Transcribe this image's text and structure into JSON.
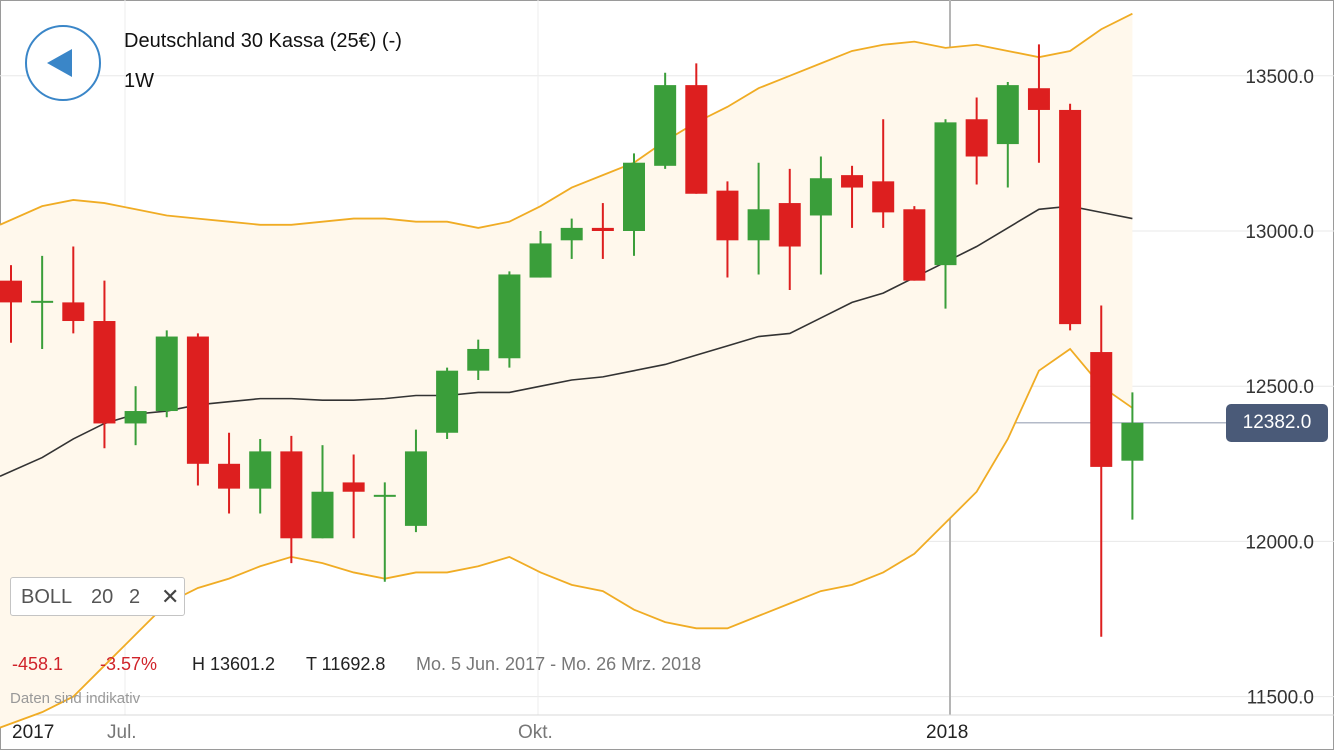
{
  "header": {
    "title": "Deutschland 30 Kassa (25€) (-)",
    "interval": "1W",
    "back_icon": "back-arrow-icon"
  },
  "indicator": {
    "name": "BOLL",
    "period": "20",
    "stddev": "2",
    "close_icon": "close-icon"
  },
  "stats": {
    "change_abs": "-458.1",
    "change_pct": "-3.57%",
    "high": "H 13601.2",
    "low": "T 11692.8",
    "range": "Mo. 5 Jun. 2017 - Mo. 26 Mrz. 2018"
  },
  "disclaimer": "Daten sind indikativ",
  "current_price": "12382.0",
  "colors": {
    "up": "#3a9e3a",
    "down": "#dd1f1f",
    "band": "#f0ac24",
    "band_fill": "#fff8ec",
    "middle": "#333333",
    "badge": "#4a5a78",
    "back_button": "#3a86c8"
  },
  "chart_data": {
    "type": "candlestick",
    "title": "Deutschland 30 Kassa (25€) (-)",
    "interval": "1W",
    "ylim": [
      11450,
      13850
    ],
    "yticks": [
      11500,
      12000,
      12500,
      13000,
      13500
    ],
    "ytick_labels": [
      "11500.0",
      "12000.0",
      "12500.0",
      "13000.0",
      "13500.0"
    ],
    "xtick_labels": [
      "2017",
      "Jul.",
      "Okt.",
      "2018"
    ],
    "grid": true,
    "current_price": 12382.0,
    "candles": [
      {
        "o": 12840,
        "h": 12890,
        "l": 12640,
        "c": 12770
      },
      {
        "o": 12770,
        "h": 12920,
        "l": 12620,
        "c": 12775
      },
      {
        "o": 12770,
        "h": 12950,
        "l": 12670,
        "c": 12710
      },
      {
        "o": 12710,
        "h": 12840,
        "l": 12300,
        "c": 12380
      },
      {
        "o": 12380,
        "h": 12500,
        "l": 12310,
        "c": 12420
      },
      {
        "o": 12420,
        "h": 12680,
        "l": 12400,
        "c": 12660
      },
      {
        "o": 12660,
        "h": 12670,
        "l": 12180,
        "c": 12250
      },
      {
        "o": 12250,
        "h": 12350,
        "l": 12090,
        "c": 12170
      },
      {
        "o": 12170,
        "h": 12330,
        "l": 12090,
        "c": 12290
      },
      {
        "o": 12290,
        "h": 12340,
        "l": 11930,
        "c": 12010
      },
      {
        "o": 12010,
        "h": 12310,
        "l": 12010,
        "c": 12160
      },
      {
        "o": 12190,
        "h": 12280,
        "l": 12010,
        "c": 12160
      },
      {
        "o": 12150,
        "h": 12190,
        "l": 11870,
        "c": 12150
      },
      {
        "o": 12050,
        "h": 12360,
        "l": 12030,
        "c": 12290
      },
      {
        "o": 12350,
        "h": 12560,
        "l": 12330,
        "c": 12550
      },
      {
        "o": 12550,
        "h": 12650,
        "l": 12520,
        "c": 12620
      },
      {
        "o": 12590,
        "h": 12870,
        "l": 12560,
        "c": 12860
      },
      {
        "o": 12850,
        "h": 13000,
        "l": 12850,
        "c": 12960
      },
      {
        "o": 12970,
        "h": 13040,
        "l": 12910,
        "c": 13010
      },
      {
        "o": 13010,
        "h": 13090,
        "l": 12910,
        "c": 13000
      },
      {
        "o": 13000,
        "h": 13250,
        "l": 12920,
        "c": 13220
      },
      {
        "o": 13210,
        "h": 13510,
        "l": 13200,
        "c": 13470
      },
      {
        "o": 13470,
        "h": 13540,
        "l": 13120,
        "c": 13120
      },
      {
        "o": 13130,
        "h": 13160,
        "l": 12850,
        "c": 12970
      },
      {
        "o": 12970,
        "h": 13220,
        "l": 12860,
        "c": 13070
      },
      {
        "o": 13090,
        "h": 13200,
        "l": 12810,
        "c": 12950
      },
      {
        "o": 13050,
        "h": 13240,
        "l": 12860,
        "c": 13170
      },
      {
        "o": 13180,
        "h": 13210,
        "l": 13010,
        "c": 13140
      },
      {
        "o": 13160,
        "h": 13360,
        "l": 13010,
        "c": 13060
      },
      {
        "o": 13070,
        "h": 13080,
        "l": 12840,
        "c": 12840
      },
      {
        "o": 12890,
        "h": 13360,
        "l": 12750,
        "c": 13350
      },
      {
        "o": 13360,
        "h": 13430,
        "l": 13150,
        "c": 13240
      },
      {
        "o": 13280,
        "h": 13480,
        "l": 13140,
        "c": 13470
      },
      {
        "o": 13460,
        "h": 13601.2,
        "l": 13220,
        "c": 13390
      },
      {
        "o": 13390,
        "h": 13410,
        "l": 12680,
        "c": 12700
      },
      {
        "o": 12610,
        "h": 12760,
        "l": 11692.8,
        "c": 12240
      },
      {
        "o": 12260,
        "h": 12480,
        "l": 12070,
        "c": 12382
      }
    ],
    "bollinger": {
      "period": 20,
      "stddev": 2,
      "upper": [
        13020,
        13080,
        13100,
        13090,
        13070,
        13050,
        13040,
        13030,
        13020,
        13020,
        13030,
        13040,
        13040,
        13030,
        13030,
        13010,
        13030,
        13080,
        13140,
        13180,
        13220,
        13290,
        13350,
        13400,
        13460,
        13500,
        13540,
        13580,
        13600,
        13610,
        13590,
        13600,
        13580,
        13560,
        13580,
        13650,
        13700
      ],
      "middle": [
        12210,
        12270,
        12330,
        12380,
        12410,
        12420,
        12440,
        12450,
        12460,
        12460,
        12455,
        12455,
        12460,
        12470,
        12470,
        12480,
        12480,
        12500,
        12520,
        12530,
        12550,
        12570,
        12600,
        12630,
        12660,
        12670,
        12720,
        12770,
        12800,
        12850,
        12900,
        12950,
        13010,
        13070,
        13080,
        13060,
        13040
      ],
      "lower": [
        11400,
        11450,
        11500,
        11600,
        11700,
        11800,
        11850,
        11880,
        11920,
        11950,
        11930,
        11900,
        11880,
        11900,
        11900,
        11920,
        11950,
        11900,
        11860,
        11840,
        11780,
        11740,
        11720,
        11720,
        11760,
        11800,
        11840,
        11860,
        11900,
        11960,
        12060,
        12160,
        12330,
        12550,
        12620,
        12500,
        12430
      ]
    }
  }
}
